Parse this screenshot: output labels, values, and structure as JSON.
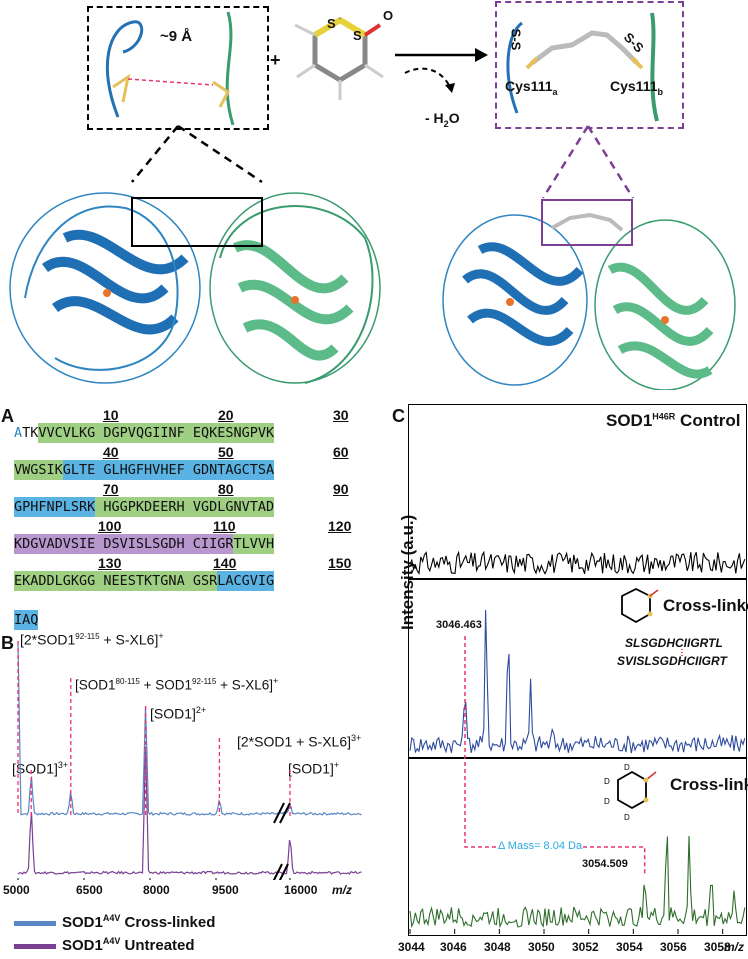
{
  "top": {
    "distance_label": "~9 Å",
    "plus": "+",
    "sulfur_1": "S",
    "sulfur_2": "S",
    "oxygen": "O",
    "water_loss": "- H",
    "water_loss_sub": "2",
    "water_loss_tail": "O",
    "ss_left": "S-S",
    "ss_right": "S-S",
    "cys_a": "Cys111",
    "cys_a_sub": "a",
    "cys_b": "Cys111",
    "cys_b_sub": "b"
  },
  "panel_A": {
    "letter": "A",
    "ticks": [
      "10",
      "20",
      "30",
      "40",
      "50",
      "60",
      "70",
      "80",
      "90",
      "100",
      "110",
      "120",
      "130",
      "140",
      "150"
    ],
    "rows": [
      {
        "segments": [
          {
            "t": "A",
            "c": "",
            "col": "blu"
          },
          {
            "t": "TK",
            "c": ""
          },
          {
            "t": "VVCVLKG DGPVQGIINF EQKESNGPVK",
            "c": "g"
          }
        ]
      },
      {
        "segments": [
          {
            "t": "VWGSIK",
            "c": "g"
          },
          {
            "t": "GLTE GLHGFHVHEF GDNTAGCTSA",
            "c": "b"
          }
        ]
      },
      {
        "segments": [
          {
            "t": "GPHFNPLSRK",
            "c": "b"
          },
          {
            "t": " HGGPKDEERH VGDLGNVTAD",
            "c": "g"
          }
        ]
      },
      {
        "segments": [
          {
            "t": "KDGVADVSIE DSVISLSGDH CIIGR",
            "c": "p"
          },
          {
            "t": "TLVVH",
            "c": "g"
          }
        ]
      },
      {
        "segments": [
          {
            "t": "EKADDLGK",
            "c": "g"
          },
          {
            "t": "GG NEESTKTGNA GSR",
            "c": "g"
          },
          {
            "t": "LACGVIG",
            "c": "b"
          }
        ]
      },
      {
        "segments": [
          {
            "t": "IAQ",
            "c": "b"
          }
        ]
      }
    ]
  },
  "panel_B": {
    "letter": "B",
    "peak_labels": {
      "dimer": "[2*SOD1",
      "dimer_sup": "92-115",
      "dimer_tail": " + S-XL6]",
      "dimer_charge": "+",
      "hetero": "[SOD1",
      "hetero_sup1": "80-115",
      "hetero_mid": " + SOD1",
      "hetero_sup2": "92-115",
      "hetero_tail": " + S-XL6]",
      "hetero_charge": "+",
      "sod1_2": "[SOD1]",
      "sod1_2_charge": "2+",
      "full_dimer": "[2*SOD1 + S-XL6]",
      "full_dimer_charge": "3+",
      "sod1_3": "[SOD1]",
      "sod1_3_charge": "3+",
      "sod1_1": "[SOD1]",
      "sod1_1_charge": "+"
    },
    "xticks": [
      "5000",
      "6500",
      "8000",
      "9500",
      "16000"
    ],
    "xlabel": "m/z",
    "legend": [
      {
        "label": "SOD1",
        "sup": "A4V",
        "tail": " Cross-linked",
        "color": "#5a86c5"
      },
      {
        "label": "SOD1",
        "sup": "A4V",
        "tail": " Untreated",
        "color": "#7b3f93"
      }
    ]
  },
  "panel_C": {
    "letter": "C",
    "ylabel": "Intensity (a.u.)",
    "xlabel": "m/z",
    "xticks": [
      "3044",
      "3046",
      "3048",
      "3050",
      "3052",
      "3054",
      "3056",
      "3058"
    ],
    "sub1_title": "SOD1",
    "sub1_sup": "H46R",
    "sub1_tail": " Control",
    "sub2_title": "Cross-linked",
    "sub2_peak": "3046.463",
    "pep1": "SLSGDHCIIGRTL",
    "pep2": "SVISLSGDHCIIGRT",
    "sub3_title": "Cross-linked",
    "sub3_peak": "3054.509",
    "delta_mass": "Δ Mass= 8.04 Da",
    "deuterium": "D",
    "colors": {
      "control": "#000000",
      "xl": "#2e4a9e",
      "dxl": "#2e6e2a",
      "marker": "#e8336e",
      "delta": "#29a9e0"
    }
  },
  "chart_data": [
    {
      "type": "line",
      "title": "",
      "xlabel": "m/z",
      "ylabel": "",
      "x_ticks": [
        5000,
        6500,
        8000,
        9500,
        16000
      ],
      "series": [
        {
          "name": "SOD1A4V Cross-linked",
          "peaks": [
            {
              "x": 5000,
              "y": 1.0
            },
            {
              "x": 5300,
              "y": 0.25
            },
            {
              "x": 6200,
              "y": 0.15
            },
            {
              "x": 7900,
              "y": 0.65
            },
            {
              "x": 9800,
              "y": 0.1
            },
            {
              "x": 16000,
              "y": 0.08
            }
          ]
        },
        {
          "name": "SOD1A4V Untreated",
          "peaks": [
            {
              "x": 5300,
              "y": 0.5
            },
            {
              "x": 7900,
              "y": 0.95
            },
            {
              "x": 16000,
              "y": 0.3
            }
          ]
        }
      ]
    },
    {
      "type": "line",
      "title": "SOD1H46R Control",
      "xlabel": "m/z",
      "ylabel": "Intensity (a.u.)",
      "xlim": [
        3044,
        3059
      ],
      "x_ticks": [
        3044,
        3046,
        3048,
        3050,
        3052,
        3054,
        3056,
        3058
      ]
    },
    {
      "type": "line",
      "title": "Cross-linked",
      "xlim": [
        3044,
        3059
      ],
      "peaks": [
        {
          "x": 3046.463,
          "y": 0.45
        },
        {
          "x": 3047.4,
          "y": 1.0
        },
        {
          "x": 3048.4,
          "y": 0.85
        },
        {
          "x": 3049.4,
          "y": 0.45
        },
        {
          "x": 3050.4,
          "y": 0.2
        }
      ]
    },
    {
      "type": "line",
      "title": "Cross-linked",
      "xlim": [
        3044,
        3059
      ],
      "peaks": [
        {
          "x": 3054.509,
          "y": 0.45
        },
        {
          "x": 3055.5,
          "y": 0.9
        },
        {
          "x": 3056.5,
          "y": 0.75
        },
        {
          "x": 3057.5,
          "y": 0.5
        },
        {
          "x": 3058.5,
          "y": 0.3
        }
      ]
    }
  ]
}
